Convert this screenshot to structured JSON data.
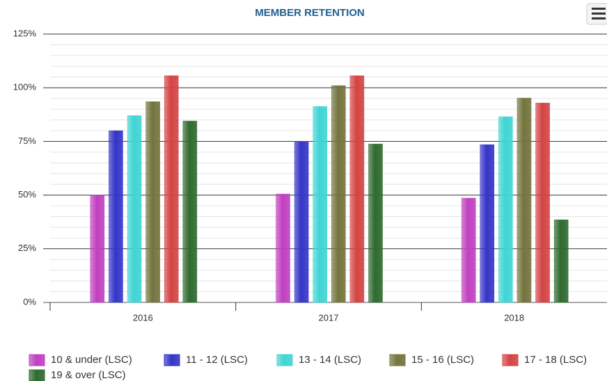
{
  "chart_data": {
    "type": "bar",
    "title": "MEMBER RETENTION",
    "categories": [
      "2016",
      "2017",
      "2018"
    ],
    "series": [
      {
        "name": "10 & under (LSC)",
        "color": "#c040c0",
        "values": [
          50,
          50.5,
          48.6
        ]
      },
      {
        "name": "11 - 12 (LSC)",
        "color": "#3535c8",
        "values": [
          80,
          75,
          73.5
        ]
      },
      {
        "name": "13 - 14 (LSC)",
        "color": "#40d4d4",
        "values": [
          87,
          91.3,
          86.5
        ]
      },
      {
        "name": "15 - 16 (LSC)",
        "color": "#74743e",
        "values": [
          93.5,
          101,
          95.2
        ]
      },
      {
        "name": "17 - 18 (LSC)",
        "color": "#d44444",
        "values": [
          105.6,
          105.6,
          92.9
        ]
      },
      {
        "name": "19 & over (LSC)",
        "color": "#2f6a2f",
        "values": [
          84.5,
          73.8,
          38.5
        ]
      }
    ],
    "ylim": [
      0,
      125
    ],
    "yticks": [
      {
        "value": 0,
        "label": "0%"
      },
      {
        "value": 25,
        "label": "25%"
      },
      {
        "value": 50,
        "label": "50%"
      },
      {
        "value": 75,
        "label": "75%"
      },
      {
        "value": 100,
        "label": "100%"
      },
      {
        "value": 125,
        "label": "125%"
      }
    ],
    "grid": true
  }
}
